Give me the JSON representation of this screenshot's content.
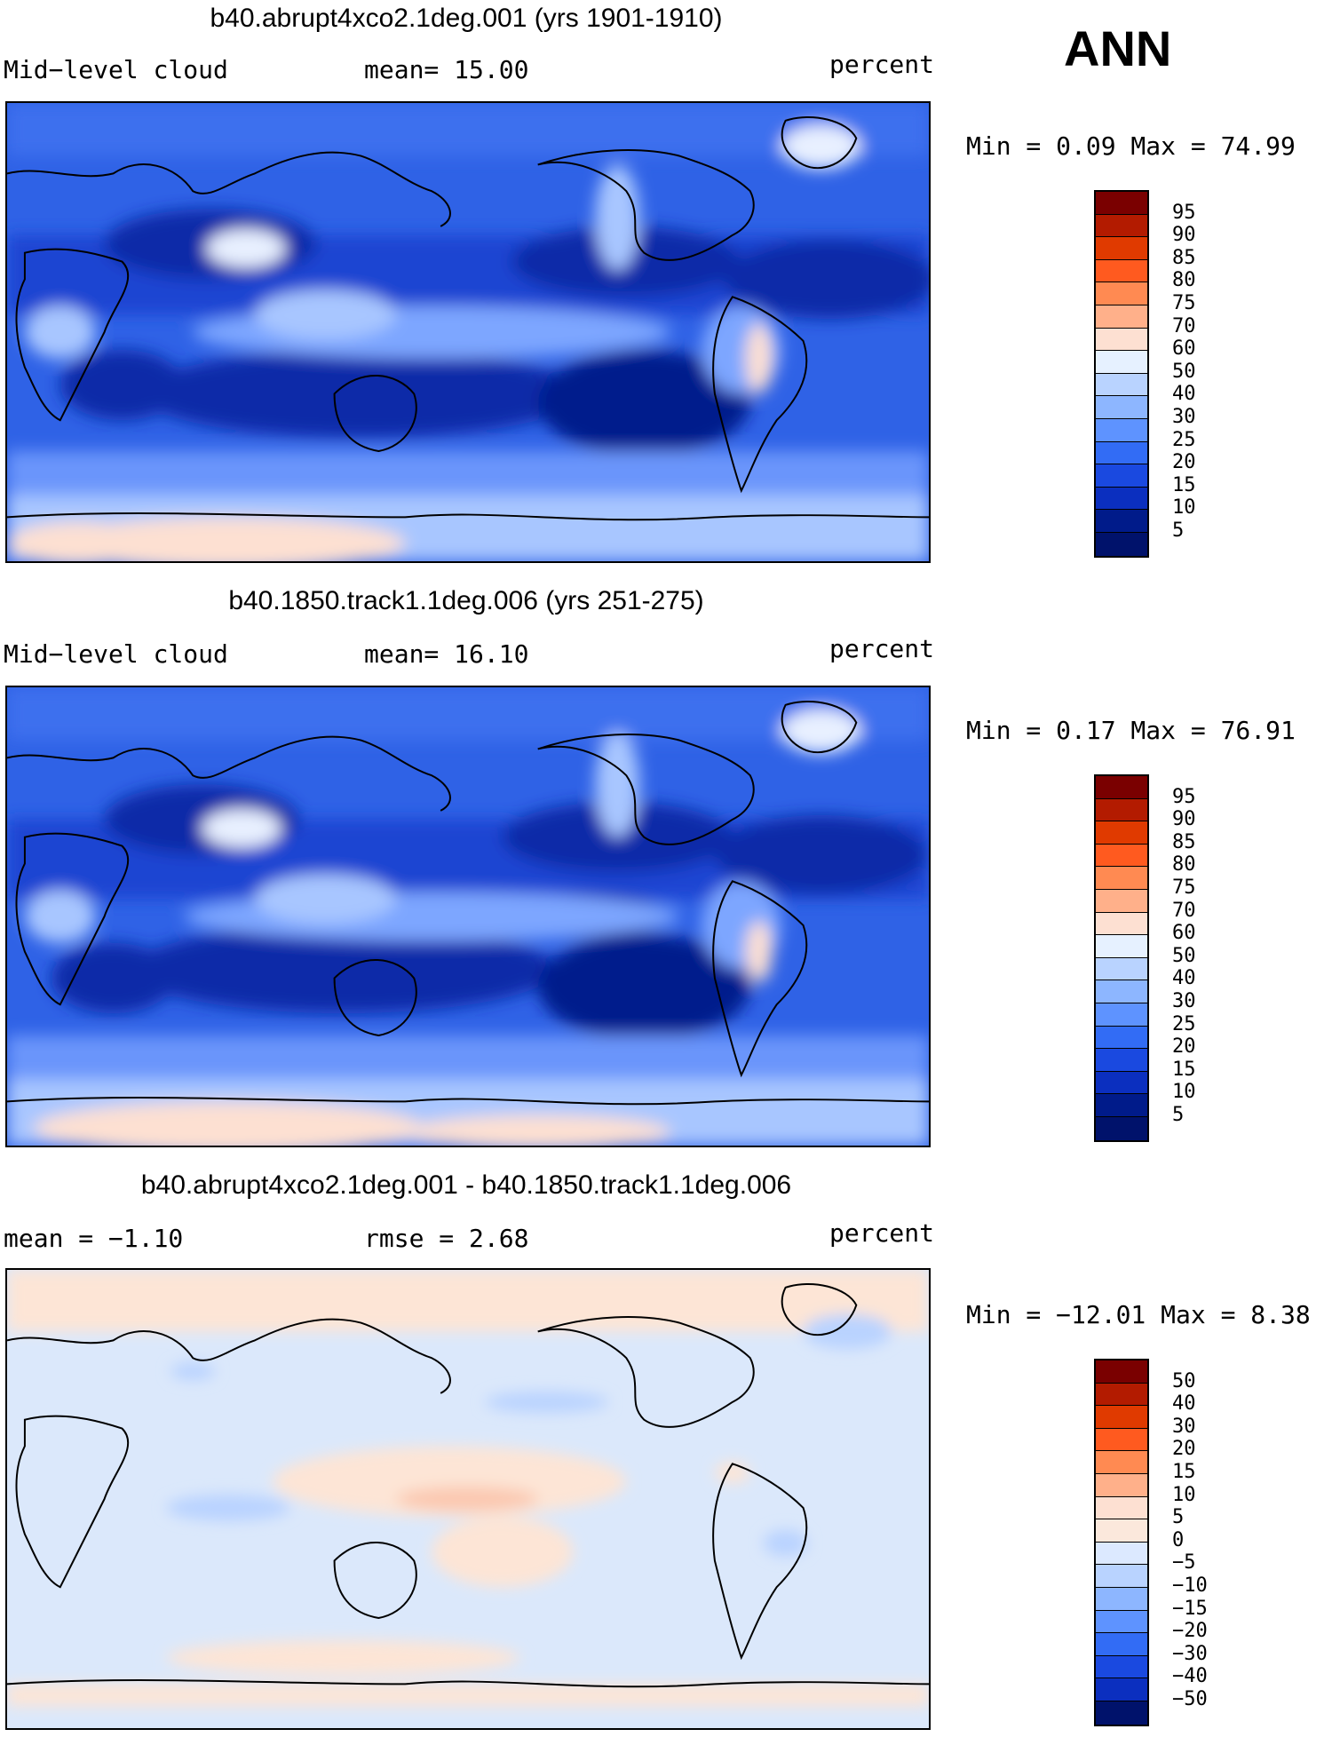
{
  "season": "ANN",
  "panels": [
    {
      "title": "b40.abrupt4xco2.1deg.001 (yrs 1901-1910)",
      "left_label": "Mid−level cloud",
      "mid_label": "mean=   15.00",
      "right_label": "percent",
      "minmax": "Min =    0.09 Max =   74.99",
      "colorbar": {
        "levels": [
          "95",
          "90",
          "85",
          "80",
          "75",
          "70",
          "60",
          "50",
          "40",
          "30",
          "25",
          "20",
          "15",
          "10",
          "5"
        ],
        "colors": [
          "#7a0000",
          "#b31b00",
          "#e03a00",
          "#ff5a1f",
          "#ff8a52",
          "#ffb08a",
          "#fde0d2",
          "#e6f1ff",
          "#b9d3ff",
          "#8db6ff",
          "#5e93ff",
          "#326cf5",
          "#1a49e0",
          "#0b2fbf",
          "#001b8a",
          "#00126b"
        ]
      }
    },
    {
      "title": "b40.1850.track1.1deg.006 (yrs 251-275)",
      "left_label": "Mid−level cloud",
      "mid_label": "mean=   16.10",
      "right_label": "percent",
      "minmax": "Min =    0.17 Max =   76.91",
      "colorbar": {
        "levels": [
          "95",
          "90",
          "85",
          "80",
          "75",
          "70",
          "60",
          "50",
          "40",
          "30",
          "25",
          "20",
          "15",
          "10",
          "5"
        ],
        "colors": [
          "#7a0000",
          "#b31b00",
          "#e03a00",
          "#ff5a1f",
          "#ff8a52",
          "#ffb08a",
          "#fde0d2",
          "#e6f1ff",
          "#b9d3ff",
          "#8db6ff",
          "#5e93ff",
          "#326cf5",
          "#1a49e0",
          "#0b2fbf",
          "#001b8a",
          "#00126b"
        ]
      }
    },
    {
      "title": "b40.abrupt4xco2.1deg.001 - b40.1850.track1.1deg.006",
      "left_label": "mean =  −1.10",
      "mid_label": "rmse =    2.68",
      "right_label": "percent",
      "minmax": "Min = −12.01 Max =    8.38",
      "colorbar": {
        "levels": [
          "50",
          "40",
          "30",
          "20",
          "15",
          "10",
          "5",
          "0",
          "−5",
          "−10",
          "−15",
          "−20",
          "−30",
          "−40",
          "−50"
        ],
        "colors": [
          "#7a0000",
          "#b31b00",
          "#e03a00",
          "#ff5a1f",
          "#ff8a52",
          "#ffb08a",
          "#fde0d2",
          "#fbe8dc",
          "#dce9ff",
          "#b9d3ff",
          "#8db6ff",
          "#5e93ff",
          "#326cf5",
          "#1a49e0",
          "#0b2fbf",
          "#00126b"
        ]
      }
    }
  ],
  "colors": {
    "ocean_base_cloud": "#2456e0",
    "diff_base": "#dbe8fb",
    "diff_warm": "#fde5d6",
    "coast": "#000000"
  }
}
